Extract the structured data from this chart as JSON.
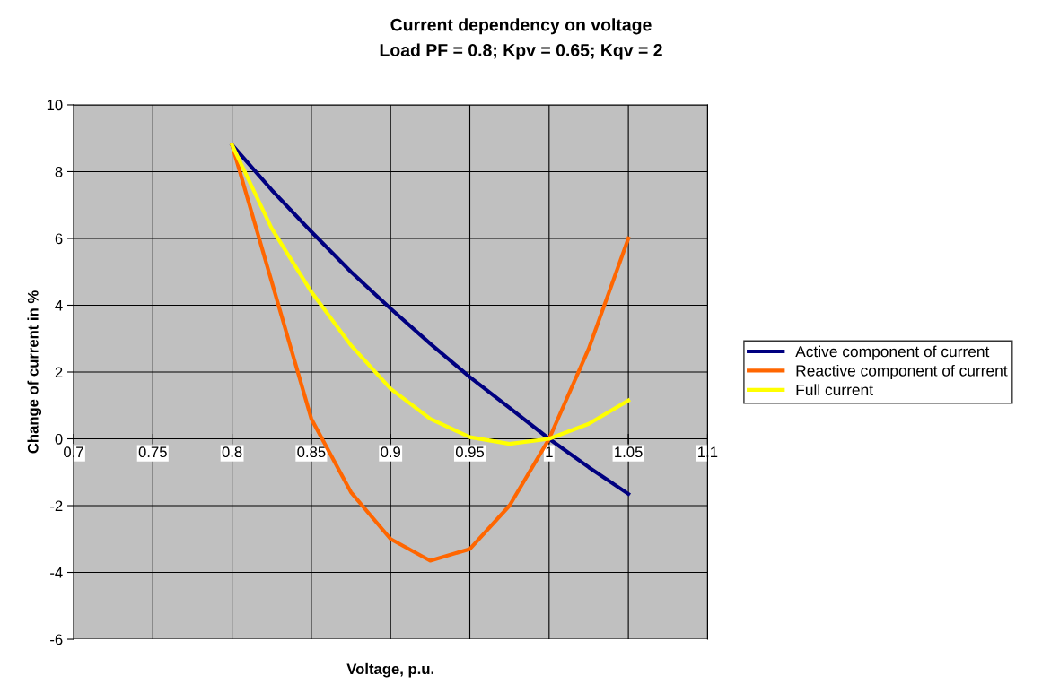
{
  "chart_data": {
    "type": "line",
    "title": "Current dependency on voltage",
    "subtitle": "Load PF = 0.8; Kpv = 0.65; Kqv = 2",
    "xlabel": "Voltage, p.u.",
    "ylabel": "Change of current in %",
    "x": [
      0.8,
      0.825,
      0.85,
      0.875,
      0.9,
      0.925,
      0.95,
      0.975,
      1.0,
      1.025,
      1.05
    ],
    "series": [
      {
        "name": "Active component of current",
        "color": "#000080",
        "values": [
          8.8,
          7.45,
          6.2,
          5.0,
          3.9,
          2.85,
          1.85,
          0.93,
          0,
          -0.85,
          -1.65
        ]
      },
      {
        "name": "Reactive component of current",
        "color": "#ff6600",
        "values": [
          8.8,
          4.7,
          0.6,
          -1.6,
          -3.0,
          -3.65,
          -3.3,
          -2.0,
          0,
          2.7,
          6.0
        ]
      },
      {
        "name": "Full current",
        "color": "#ffff00",
        "values": [
          8.8,
          6.3,
          4.4,
          2.8,
          1.5,
          0.6,
          0.05,
          -0.15,
          0,
          0.45,
          1.15
        ]
      }
    ],
    "xlim": [
      0.7,
      1.1
    ],
    "xticks": [
      0.7,
      0.75,
      0.8,
      0.85,
      0.9,
      0.95,
      1,
      1.05,
      1.1
    ],
    "ylim": [
      -6,
      10
    ],
    "yticks": [
      -6,
      -4,
      -2,
      0,
      2,
      4,
      6,
      8,
      10
    ],
    "grid": true,
    "legend": "right",
    "marker": "none",
    "line_style": "solid"
  }
}
